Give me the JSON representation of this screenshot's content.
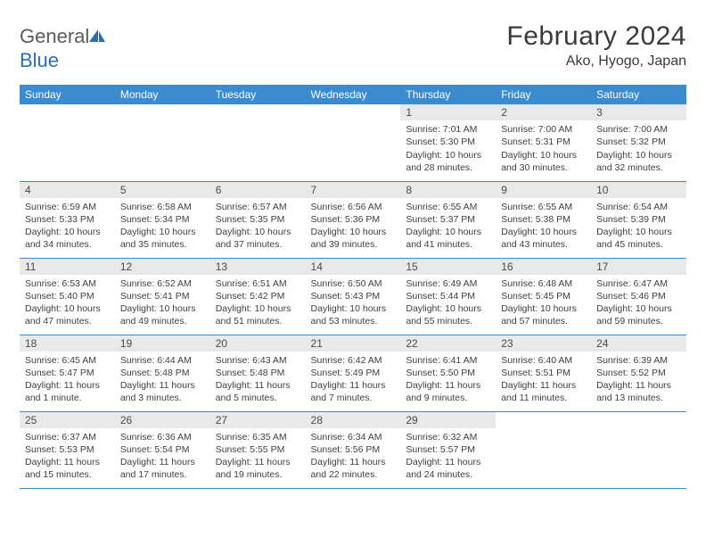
{
  "logo": {
    "text1": "General",
    "text2": "Blue"
  },
  "title": "February 2024",
  "location": "Ako, Hyogo, Japan",
  "colors": {
    "header_bg": "#3b8bce",
    "header_text": "#ffffff",
    "daynum_bg": "#e9e9e9",
    "text": "#3f3f3f",
    "rule": "#3b8bce",
    "logo_gray": "#5b5b5b",
    "logo_blue": "#2a6fb5"
  },
  "day_headers": [
    "Sunday",
    "Monday",
    "Tuesday",
    "Wednesday",
    "Thursday",
    "Friday",
    "Saturday"
  ],
  "weeks": [
    [
      {
        "n": "",
        "sr": "",
        "ss": "",
        "d1": "",
        "d2": ""
      },
      {
        "n": "",
        "sr": "",
        "ss": "",
        "d1": "",
        "d2": ""
      },
      {
        "n": "",
        "sr": "",
        "ss": "",
        "d1": "",
        "d2": ""
      },
      {
        "n": "",
        "sr": "",
        "ss": "",
        "d1": "",
        "d2": ""
      },
      {
        "n": "1",
        "sr": "Sunrise: 7:01 AM",
        "ss": "Sunset: 5:30 PM",
        "d1": "Daylight: 10 hours",
        "d2": "and 28 minutes."
      },
      {
        "n": "2",
        "sr": "Sunrise: 7:00 AM",
        "ss": "Sunset: 5:31 PM",
        "d1": "Daylight: 10 hours",
        "d2": "and 30 minutes."
      },
      {
        "n": "3",
        "sr": "Sunrise: 7:00 AM",
        "ss": "Sunset: 5:32 PM",
        "d1": "Daylight: 10 hours",
        "d2": "and 32 minutes."
      }
    ],
    [
      {
        "n": "4",
        "sr": "Sunrise: 6:59 AM",
        "ss": "Sunset: 5:33 PM",
        "d1": "Daylight: 10 hours",
        "d2": "and 34 minutes."
      },
      {
        "n": "5",
        "sr": "Sunrise: 6:58 AM",
        "ss": "Sunset: 5:34 PM",
        "d1": "Daylight: 10 hours",
        "d2": "and 35 minutes."
      },
      {
        "n": "6",
        "sr": "Sunrise: 6:57 AM",
        "ss": "Sunset: 5:35 PM",
        "d1": "Daylight: 10 hours",
        "d2": "and 37 minutes."
      },
      {
        "n": "7",
        "sr": "Sunrise: 6:56 AM",
        "ss": "Sunset: 5:36 PM",
        "d1": "Daylight: 10 hours",
        "d2": "and 39 minutes."
      },
      {
        "n": "8",
        "sr": "Sunrise: 6:55 AM",
        "ss": "Sunset: 5:37 PM",
        "d1": "Daylight: 10 hours",
        "d2": "and 41 minutes."
      },
      {
        "n": "9",
        "sr": "Sunrise: 6:55 AM",
        "ss": "Sunset: 5:38 PM",
        "d1": "Daylight: 10 hours",
        "d2": "and 43 minutes."
      },
      {
        "n": "10",
        "sr": "Sunrise: 6:54 AM",
        "ss": "Sunset: 5:39 PM",
        "d1": "Daylight: 10 hours",
        "d2": "and 45 minutes."
      }
    ],
    [
      {
        "n": "11",
        "sr": "Sunrise: 6:53 AM",
        "ss": "Sunset: 5:40 PM",
        "d1": "Daylight: 10 hours",
        "d2": "and 47 minutes."
      },
      {
        "n": "12",
        "sr": "Sunrise: 6:52 AM",
        "ss": "Sunset: 5:41 PM",
        "d1": "Daylight: 10 hours",
        "d2": "and 49 minutes."
      },
      {
        "n": "13",
        "sr": "Sunrise: 6:51 AM",
        "ss": "Sunset: 5:42 PM",
        "d1": "Daylight: 10 hours",
        "d2": "and 51 minutes."
      },
      {
        "n": "14",
        "sr": "Sunrise: 6:50 AM",
        "ss": "Sunset: 5:43 PM",
        "d1": "Daylight: 10 hours",
        "d2": "and 53 minutes."
      },
      {
        "n": "15",
        "sr": "Sunrise: 6:49 AM",
        "ss": "Sunset: 5:44 PM",
        "d1": "Daylight: 10 hours",
        "d2": "and 55 minutes."
      },
      {
        "n": "16",
        "sr": "Sunrise: 6:48 AM",
        "ss": "Sunset: 5:45 PM",
        "d1": "Daylight: 10 hours",
        "d2": "and 57 minutes."
      },
      {
        "n": "17",
        "sr": "Sunrise: 6:47 AM",
        "ss": "Sunset: 5:46 PM",
        "d1": "Daylight: 10 hours",
        "d2": "and 59 minutes."
      }
    ],
    [
      {
        "n": "18",
        "sr": "Sunrise: 6:45 AM",
        "ss": "Sunset: 5:47 PM",
        "d1": "Daylight: 11 hours",
        "d2": "and 1 minute."
      },
      {
        "n": "19",
        "sr": "Sunrise: 6:44 AM",
        "ss": "Sunset: 5:48 PM",
        "d1": "Daylight: 11 hours",
        "d2": "and 3 minutes."
      },
      {
        "n": "20",
        "sr": "Sunrise: 6:43 AM",
        "ss": "Sunset: 5:48 PM",
        "d1": "Daylight: 11 hours",
        "d2": "and 5 minutes."
      },
      {
        "n": "21",
        "sr": "Sunrise: 6:42 AM",
        "ss": "Sunset: 5:49 PM",
        "d1": "Daylight: 11 hours",
        "d2": "and 7 minutes."
      },
      {
        "n": "22",
        "sr": "Sunrise: 6:41 AM",
        "ss": "Sunset: 5:50 PM",
        "d1": "Daylight: 11 hours",
        "d2": "and 9 minutes."
      },
      {
        "n": "23",
        "sr": "Sunrise: 6:40 AM",
        "ss": "Sunset: 5:51 PM",
        "d1": "Daylight: 11 hours",
        "d2": "and 11 minutes."
      },
      {
        "n": "24",
        "sr": "Sunrise: 6:39 AM",
        "ss": "Sunset: 5:52 PM",
        "d1": "Daylight: 11 hours",
        "d2": "and 13 minutes."
      }
    ],
    [
      {
        "n": "25",
        "sr": "Sunrise: 6:37 AM",
        "ss": "Sunset: 5:53 PM",
        "d1": "Daylight: 11 hours",
        "d2": "and 15 minutes."
      },
      {
        "n": "26",
        "sr": "Sunrise: 6:36 AM",
        "ss": "Sunset: 5:54 PM",
        "d1": "Daylight: 11 hours",
        "d2": "and 17 minutes."
      },
      {
        "n": "27",
        "sr": "Sunrise: 6:35 AM",
        "ss": "Sunset: 5:55 PM",
        "d1": "Daylight: 11 hours",
        "d2": "and 19 minutes."
      },
      {
        "n": "28",
        "sr": "Sunrise: 6:34 AM",
        "ss": "Sunset: 5:56 PM",
        "d1": "Daylight: 11 hours",
        "d2": "and 22 minutes."
      },
      {
        "n": "29",
        "sr": "Sunrise: 6:32 AM",
        "ss": "Sunset: 5:57 PM",
        "d1": "Daylight: 11 hours",
        "d2": "and 24 minutes."
      },
      {
        "n": "",
        "sr": "",
        "ss": "",
        "d1": "",
        "d2": ""
      },
      {
        "n": "",
        "sr": "",
        "ss": "",
        "d1": "",
        "d2": ""
      }
    ]
  ]
}
